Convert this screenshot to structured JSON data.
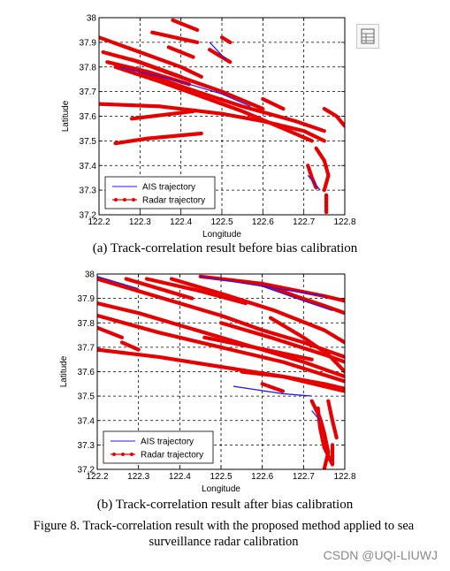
{
  "figure": {
    "caption": "Figure 8.   Track-correlation result with the proposed method applied to sea surveillance radar calibration",
    "watermark": "CSDN @UQI-LIUWJ",
    "toolbar_icon": "table-view-icon"
  },
  "colors": {
    "ais": "#1b1bff",
    "radar": "#ee0000",
    "grid": "#000000"
  },
  "chart_data": [
    {
      "type": "line",
      "caption": "(a) Track-correlation result before bias calibration",
      "xlabel": "Longitude",
      "ylabel": "Latitude",
      "xlim": [
        122.2,
        122.8
      ],
      "ylim": [
        37.2,
        38.0
      ],
      "xticks": [
        "122.2",
        "122.3",
        "122.4",
        "122.5",
        "122.6",
        "122.7",
        "122.8"
      ],
      "yticks": [
        "37.2",
        "37.3",
        "37.4",
        "37.5",
        "37.6",
        "37.7",
        "37.8",
        "37.9",
        "38"
      ],
      "grid": true,
      "legend": {
        "position": "bottom-left",
        "entries": [
          "AIS trajectory",
          "Radar trajectory"
        ]
      },
      "series": [
        {
          "name": "AIS trajectory",
          "tracks": [
            [
              [
                122.25,
                37.8
              ],
              [
                122.4,
                37.74
              ],
              [
                122.5,
                37.69
              ],
              [
                122.57,
                37.64
              ]
            ],
            [
              [
                122.47,
                37.9
              ],
              [
                122.51,
                37.83
              ]
            ],
            [
              [
                122.71,
                37.36
              ],
              [
                122.74,
                37.3
              ]
            ]
          ]
        },
        {
          "name": "Radar trajectory",
          "tracks": [
            [
              [
                122.2,
                37.92
              ],
              [
                122.3,
                37.86
              ],
              [
                122.4,
                37.8
              ],
              [
                122.45,
                37.76
              ]
            ],
            [
              [
                122.21,
                37.86
              ],
              [
                122.3,
                37.82
              ],
              [
                122.4,
                37.76
              ]
            ],
            [
              [
                122.22,
                37.82
              ],
              [
                122.32,
                37.78
              ],
              [
                122.42,
                37.73
              ]
            ],
            [
              [
                122.24,
                37.8
              ],
              [
                122.35,
                37.74
              ],
              [
                122.45,
                37.68
              ],
              [
                122.55,
                37.62
              ],
              [
                122.65,
                37.55
              ],
              [
                122.72,
                37.5
              ]
            ],
            [
              [
                122.28,
                37.83
              ],
              [
                122.38,
                37.77
              ],
              [
                122.5,
                37.7
              ],
              [
                122.6,
                37.63
              ]
            ],
            [
              [
                122.3,
                37.78
              ],
              [
                122.42,
                37.71
              ],
              [
                122.55,
                37.64
              ],
              [
                122.68,
                37.58
              ],
              [
                122.75,
                37.54
              ]
            ],
            [
              [
                122.2,
                37.65
              ],
              [
                122.35,
                37.64
              ],
              [
                122.5,
                37.61
              ],
              [
                122.6,
                37.58
              ],
              [
                122.7,
                37.54
              ],
              [
                122.75,
                37.5
              ]
            ],
            [
              [
                122.33,
                37.94
              ],
              [
                122.44,
                37.9
              ]
            ],
            [
              [
                122.37,
                37.88
              ],
              [
                122.43,
                37.84
              ]
            ],
            [
              [
                122.38,
                37.99
              ],
              [
                122.44,
                37.95
              ]
            ],
            [
              [
                122.47,
                37.87
              ],
              [
                122.52,
                37.82
              ]
            ],
            [
              [
                122.5,
                37.92
              ],
              [
                122.52,
                37.9
              ]
            ],
            [
              [
                122.24,
                37.49
              ],
              [
                122.32,
                37.51
              ],
              [
                122.45,
                37.53
              ]
            ],
            [
              [
                122.28,
                37.59
              ],
              [
                122.38,
                37.61
              ],
              [
                122.43,
                37.62
              ]
            ],
            [
              [
                122.6,
                37.67
              ],
              [
                122.65,
                37.63
              ]
            ],
            [
              [
                122.75,
                37.63
              ],
              [
                122.78,
                37.6
              ],
              [
                122.8,
                37.56
              ]
            ],
            [
              [
                122.73,
                37.47
              ],
              [
                122.75,
                37.42
              ],
              [
                122.76,
                37.36
              ],
              [
                122.75,
                37.3
              ]
            ],
            [
              [
                122.71,
                37.4
              ],
              [
                122.72,
                37.35
              ],
              [
                122.73,
                37.31
              ]
            ],
            [
              [
                122.755,
                37.28
              ],
              [
                122.755,
                37.21
              ]
            ]
          ]
        }
      ]
    },
    {
      "type": "line",
      "caption": "(b) Track-correlation result after bias calibration",
      "xlabel": "Longitude",
      "ylabel": "Latitude",
      "xlim": [
        122.2,
        122.8
      ],
      "ylim": [
        37.2,
        38.0
      ],
      "xticks": [
        "122.2",
        "122.3",
        "122.4",
        "122.5",
        "122.6",
        "122.7",
        "122.8"
      ],
      "yticks": [
        "37.2",
        "37.3",
        "37.4",
        "37.5",
        "37.6",
        "37.7",
        "37.8",
        "37.9",
        "38"
      ],
      "grid": true,
      "legend": {
        "position": "bottom-left",
        "entries": [
          "AIS trajectory",
          "Radar trajectory"
        ]
      },
      "series": [
        {
          "name": "AIS trajectory",
          "tracks": [
            [
              [
                122.2,
                37.99
              ],
              [
                122.3,
                37.94
              ]
            ],
            [
              [
                122.45,
                37.99
              ],
              [
                122.6,
                37.95
              ],
              [
                122.75,
                37.91
              ]
            ],
            [
              [
                122.6,
                37.95
              ],
              [
                122.7,
                37.89
              ],
              [
                122.77,
                37.85
              ]
            ],
            [
              [
                122.53,
                37.54
              ],
              [
                122.65,
                37.51
              ],
              [
                122.72,
                37.5
              ]
            ],
            [
              [
                122.72,
                37.44
              ],
              [
                122.74,
                37.4
              ]
            ]
          ]
        },
        {
          "name": "Radar trajectory",
          "tracks": [
            [
              [
                122.2,
                37.98
              ],
              [
                122.3,
                37.93
              ],
              [
                122.4,
                37.88
              ],
              [
                122.5,
                37.83
              ],
              [
                122.6,
                37.77
              ],
              [
                122.7,
                37.72
              ],
              [
                122.8,
                37.66
              ]
            ],
            [
              [
                122.2,
                37.88
              ],
              [
                122.3,
                37.84
              ],
              [
                122.4,
                37.79
              ],
              [
                122.5,
                37.74
              ],
              [
                122.6,
                37.69
              ],
              [
                122.7,
                37.64
              ],
              [
                122.8,
                37.58
              ]
            ],
            [
              [
                122.2,
                37.83
              ],
              [
                122.35,
                37.76
              ],
              [
                122.5,
                37.7
              ],
              [
                122.65,
                37.64
              ],
              [
                122.8,
                37.56
              ]
            ],
            [
              [
                122.2,
                37.69
              ],
              [
                122.35,
                37.66
              ],
              [
                122.5,
                37.62
              ],
              [
                122.65,
                37.58
              ],
              [
                122.8,
                37.52
              ]
            ],
            [
              [
                122.2,
                37.78
              ],
              [
                122.26,
                37.74
              ]
            ],
            [
              [
                122.27,
                37.98
              ],
              [
                122.37,
                37.93
              ],
              [
                122.43,
                37.9
              ]
            ],
            [
              [
                122.32,
                37.98
              ],
              [
                122.45,
                37.93
              ],
              [
                122.56,
                37.88
              ]
            ],
            [
              [
                122.38,
                37.98
              ],
              [
                122.5,
                37.92
              ],
              [
                122.63,
                37.85
              ],
              [
                122.75,
                37.77
              ],
              [
                122.8,
                37.72
              ]
            ],
            [
              [
                122.45,
                37.99
              ],
              [
                122.6,
                37.96
              ],
              [
                122.75,
                37.91
              ],
              [
                122.8,
                37.89
              ]
            ],
            [
              [
                122.6,
                37.96
              ],
              [
                122.68,
                37.91
              ],
              [
                122.75,
                37.87
              ],
              [
                122.8,
                37.84
              ]
            ],
            [
              [
                122.5,
                37.8
              ],
              [
                122.62,
                37.74
              ],
              [
                122.75,
                37.67
              ],
              [
                122.8,
                37.64
              ]
            ],
            [
              [
                122.62,
                37.82
              ],
              [
                122.7,
                37.74
              ],
              [
                122.76,
                37.67
              ],
              [
                122.8,
                37.6
              ]
            ],
            [
              [
                122.46,
                37.74
              ],
              [
                122.58,
                37.7
              ],
              [
                122.72,
                37.65
              ]
            ],
            [
              [
                122.55,
                37.6
              ],
              [
                122.65,
                37.58
              ],
              [
                122.75,
                37.55
              ],
              [
                122.8,
                37.53
              ]
            ],
            [
              [
                122.26,
                37.72
              ],
              [
                122.3,
                37.69
              ]
            ],
            [
              [
                122.6,
                37.55
              ],
              [
                122.65,
                37.52
              ]
            ],
            [
              [
                122.72,
                37.48
              ],
              [
                122.74,
                37.41
              ],
              [
                122.75,
                37.35
              ],
              [
                122.76,
                37.27
              ],
              [
                122.75,
                37.2
              ]
            ],
            [
              [
                122.735,
                37.45
              ],
              [
                122.74,
                37.37
              ],
              [
                122.75,
                37.29
              ],
              [
                122.77,
                37.22
              ],
              [
                122.77,
                37.3
              ]
            ],
            [
              [
                122.76,
                37.48
              ],
              [
                122.77,
                37.4
              ],
              [
                122.78,
                37.33
              ]
            ]
          ]
        }
      ]
    }
  ]
}
